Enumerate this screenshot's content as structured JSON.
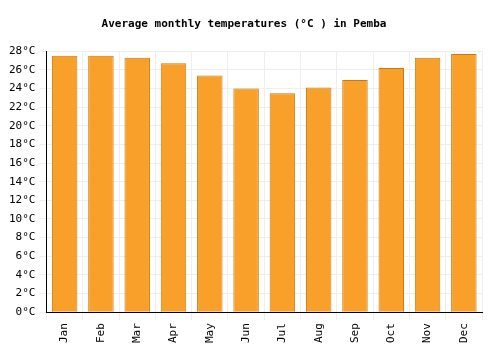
{
  "chart_data": {
    "type": "bar",
    "title": "Average monthly temperatures (°C ) in Pemba",
    "categories": [
      "Jan",
      "Feb",
      "Mar",
      "Apr",
      "May",
      "Jun",
      "Jul",
      "Aug",
      "Sep",
      "Oct",
      "Nov",
      "Dec"
    ],
    "values": [
      27.5,
      27.5,
      27.3,
      26.7,
      25.4,
      24.0,
      23.5,
      24.1,
      24.9,
      26.2,
      27.3,
      27.7
    ],
    "color": "#f9a02a",
    "ylim": [
      0,
      28
    ],
    "yticks": [
      {
        "value": 0,
        "label": "0°C"
      },
      {
        "value": 2,
        "label": "2°C"
      },
      {
        "value": 4,
        "label": "4°C"
      },
      {
        "value": 6,
        "label": "6°C"
      },
      {
        "value": 8,
        "label": "8°C"
      },
      {
        "value": 10,
        "label": "10°C"
      },
      {
        "value": 12,
        "label": "12°C"
      },
      {
        "value": 14,
        "label": "14°C"
      },
      {
        "value": 16,
        "label": "16°C"
      },
      {
        "value": 18,
        "label": "18°C"
      },
      {
        "value": 20,
        "label": "20°C"
      },
      {
        "value": 22,
        "label": "22°C"
      },
      {
        "value": 24,
        "label": "24°C"
      },
      {
        "value": 26,
        "label": "26°C"
      },
      {
        "value": 28,
        "label": "28°C"
      }
    ],
    "grid": true
  }
}
